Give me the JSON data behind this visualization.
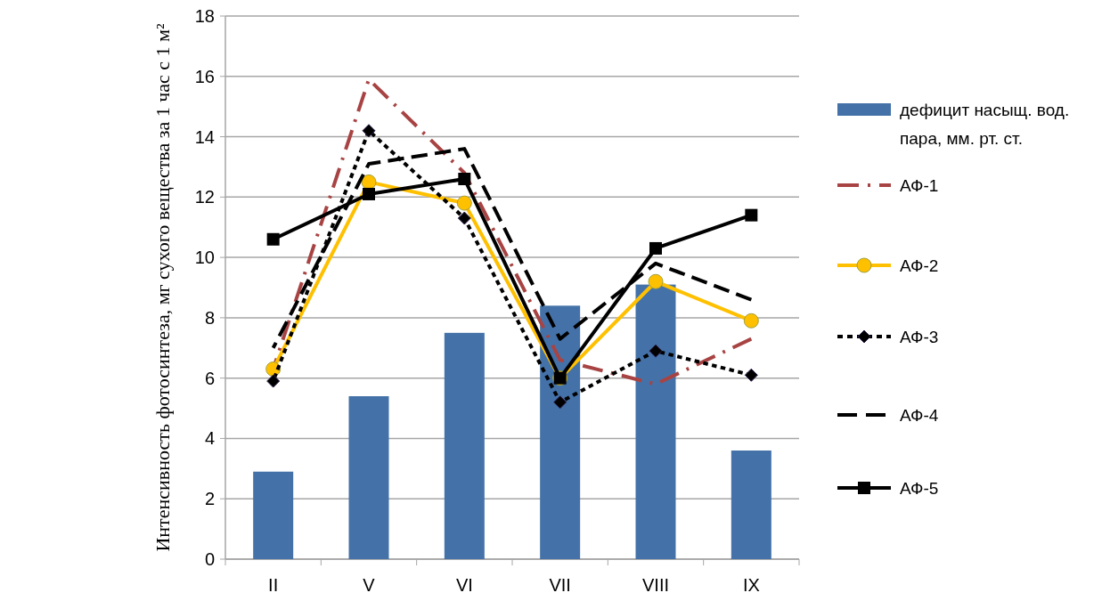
{
  "chart_data": {
    "type": "bar",
    "ylabel": "Интенсивность фотосинтеза, мг сухого вещества за 1 час с 1 м²",
    "categories": [
      "II",
      "V",
      "VI",
      "VII",
      "VIII",
      "IX"
    ],
    "series": [
      {
        "name": "дефицит насыщ. вод. пара, мм. рт. ст.",
        "color": "#4472a8",
        "values": [
          2.9,
          5.4,
          7.5,
          8.4,
          9.1,
          3.6
        ]
      },
      {
        "name": "АФ-1",
        "type": "line",
        "color": "#a84343",
        "line_style": "dashdot",
        "marker": "none",
        "values": [
          6.3,
          15.9,
          12.8,
          6.6,
          5.8,
          7.3
        ]
      },
      {
        "name": "АФ-2",
        "type": "line",
        "color": "#ffc000",
        "line_style": "solid",
        "marker": "circle",
        "values": [
          6.3,
          12.5,
          11.8,
          6.0,
          9.2,
          7.9
        ]
      },
      {
        "name": "АФ-3",
        "type": "line",
        "color": "#000000",
        "line_style": "dotted",
        "marker": "diamond",
        "values": [
          5.9,
          14.2,
          11.3,
          5.2,
          6.9,
          6.1
        ]
      },
      {
        "name": "АФ-4",
        "type": "line",
        "color": "#000000",
        "line_style": "dashed",
        "marker": "none",
        "values": [
          7.0,
          13.1,
          13.6,
          7.3,
          9.8,
          8.6
        ]
      },
      {
        "name": "АФ-5",
        "type": "line",
        "color": "#000000",
        "line_style": "solid",
        "marker": "square",
        "values": [
          10.6,
          12.1,
          12.6,
          6.0,
          10.3,
          11.4
        ]
      }
    ],
    "ylim": [
      0,
      18
    ],
    "yticks": [
      0,
      2,
      4,
      6,
      8,
      10,
      12,
      14,
      16,
      18
    ],
    "grid": "y",
    "legend": "right"
  }
}
